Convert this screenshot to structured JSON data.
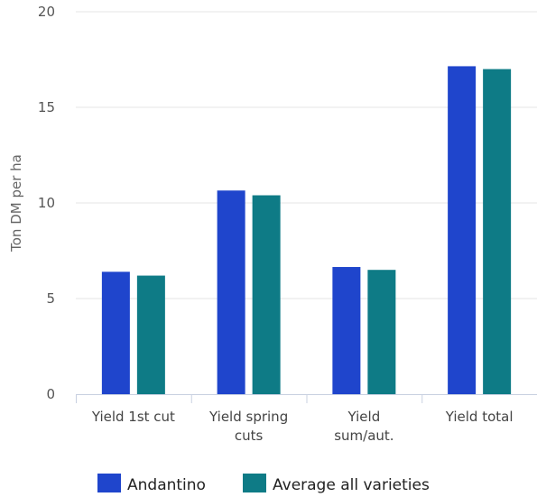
{
  "chart_data": {
    "type": "bar",
    "title": "",
    "ylabel": "Ton DM per ha",
    "xlabel": "",
    "ylim": [
      0,
      20
    ],
    "yticks": [
      0,
      5,
      10,
      15,
      20
    ],
    "grid": true,
    "legend_position": "bottom-left",
    "categories": [
      [
        "Yield 1st cut"
      ],
      [
        "Yield spring",
        "cuts"
      ],
      [
        "Yield",
        "sum/aut."
      ],
      [
        "Yield total"
      ]
    ],
    "series": [
      {
        "name": "Andantino",
        "color": "#1f45cc",
        "values": [
          6.4,
          10.65,
          6.65,
          17.15
        ]
      },
      {
        "name": "Average all varieties",
        "color": "#0e7b86",
        "values": [
          6.2,
          10.4,
          6.5,
          17.0
        ]
      }
    ]
  }
}
